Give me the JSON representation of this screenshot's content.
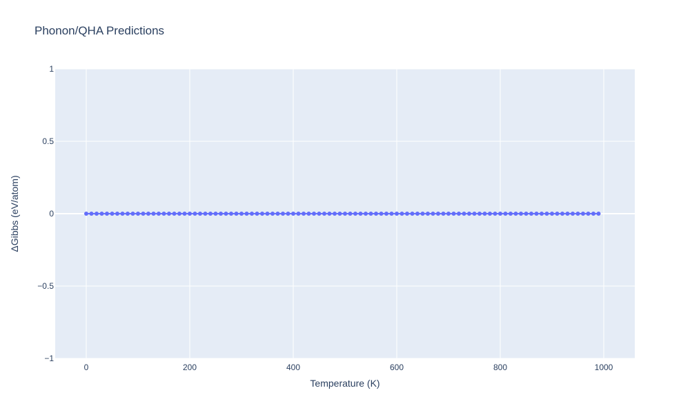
{
  "chart_data": {
    "type": "scatter",
    "mode": "lines+markers",
    "title": "Phonon/QHA Predictions",
    "xlabel": "Temperature (K)",
    "ylabel": "ΔGibbs (eV/atom)",
    "xlim": [
      -60,
      1060
    ],
    "ylim": [
      -1,
      1
    ],
    "xticks": [
      0,
      200,
      400,
      600,
      800,
      1000
    ],
    "xtick_labels": [
      "0",
      "200",
      "400",
      "600",
      "800",
      "1000"
    ],
    "yticks": [
      -1,
      -0.5,
      0,
      0.5,
      1
    ],
    "ytick_labels": [
      "−1",
      "−0.5",
      "0",
      "0.5",
      "1"
    ],
    "grid": true,
    "series": [
      {
        "color": "#636efa",
        "x_start": 0,
        "x_step": 10,
        "x_end": 990,
        "y_constant": 0
      }
    ],
    "colors": {
      "plot_bg": "#e5ecf6",
      "grid": "#ffffff",
      "text": "#2a3f5f"
    }
  }
}
